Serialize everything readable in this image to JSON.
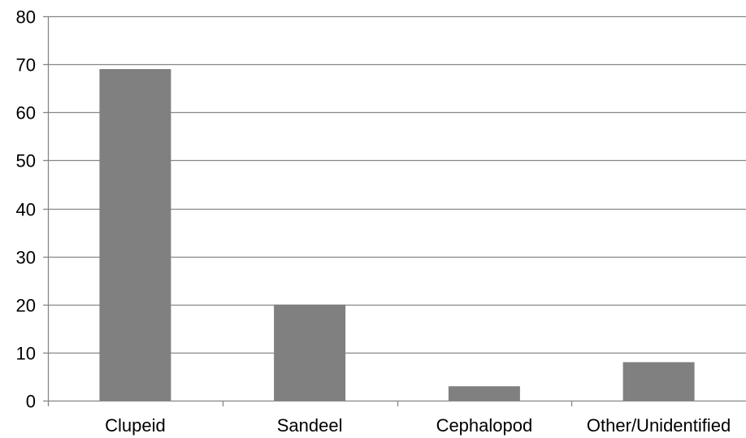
{
  "chart_data": {
    "type": "bar",
    "categories": [
      "Clupeid",
      "Sandeel",
      "Cephalopod",
      "Other/Unidentified"
    ],
    "values": [
      69,
      20,
      3,
      8
    ],
    "title": "",
    "xlabel": "",
    "ylabel": "",
    "ylim": [
      0,
      80
    ],
    "yticks": [
      0,
      10,
      20,
      30,
      40,
      50,
      60,
      70,
      80
    ],
    "grid": true,
    "legend": "none",
    "colors": {
      "bar": "#808080",
      "grid": "#868686",
      "axis": "#868686",
      "text": "#000000"
    }
  }
}
